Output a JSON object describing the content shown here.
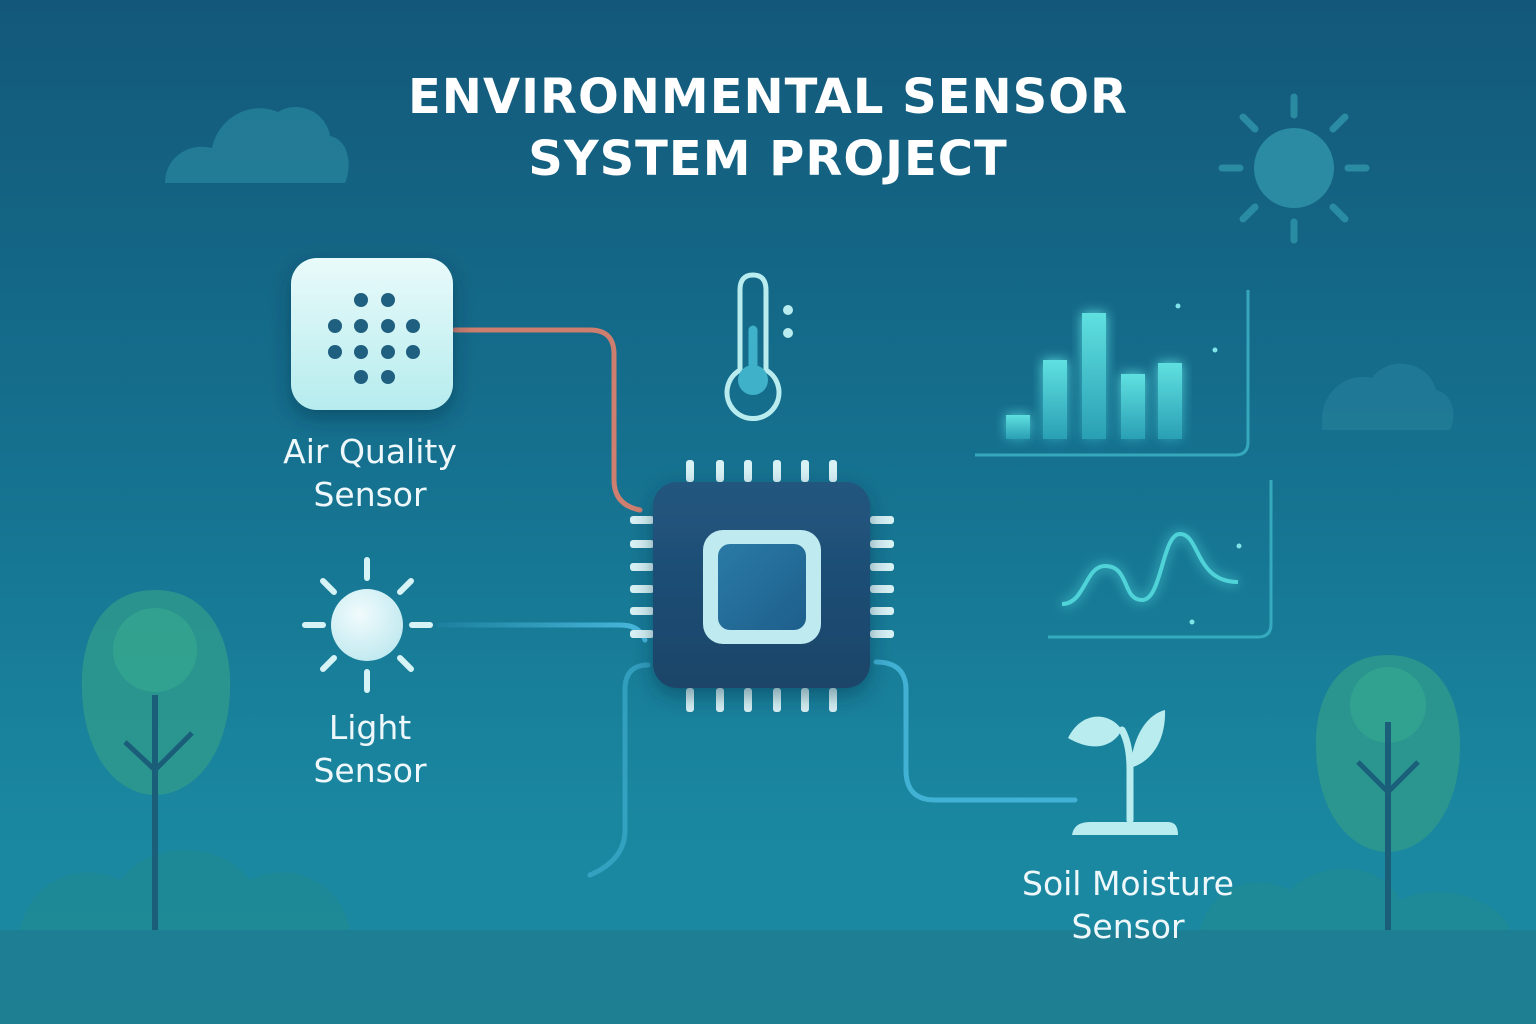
{
  "title": {
    "line1": "ENVIRONMENTAL SENSOR",
    "line2": "SYSTEM PROJECT"
  },
  "sensors": {
    "air_quality": {
      "line1": "Air Quality",
      "line2": "Sensor",
      "icon": "air-quality-grille-icon"
    },
    "light": {
      "line1": "Light",
      "line2": "Sensor",
      "icon": "sun-icon"
    },
    "soil_moisture": {
      "line1": "Soil Moisture",
      "line2": "Sensor",
      "icon": "sprout-icon"
    },
    "temperature": {
      "icon": "thermometer-icon"
    }
  },
  "hub": {
    "icon": "microcontroller-chip-icon"
  },
  "outputs": [
    {
      "icon": "bar-chart-icon"
    },
    {
      "icon": "line-chart-icon"
    }
  ],
  "colors": {
    "background_top": "#13587a",
    "background_bottom": "#1b8aa2",
    "chip": "#1d4d75",
    "connector_warm": "#e2816c",
    "connector_cool": "#49b8dd",
    "chart_accent": "#4fd3d8",
    "tree": "#2f9a8c"
  }
}
